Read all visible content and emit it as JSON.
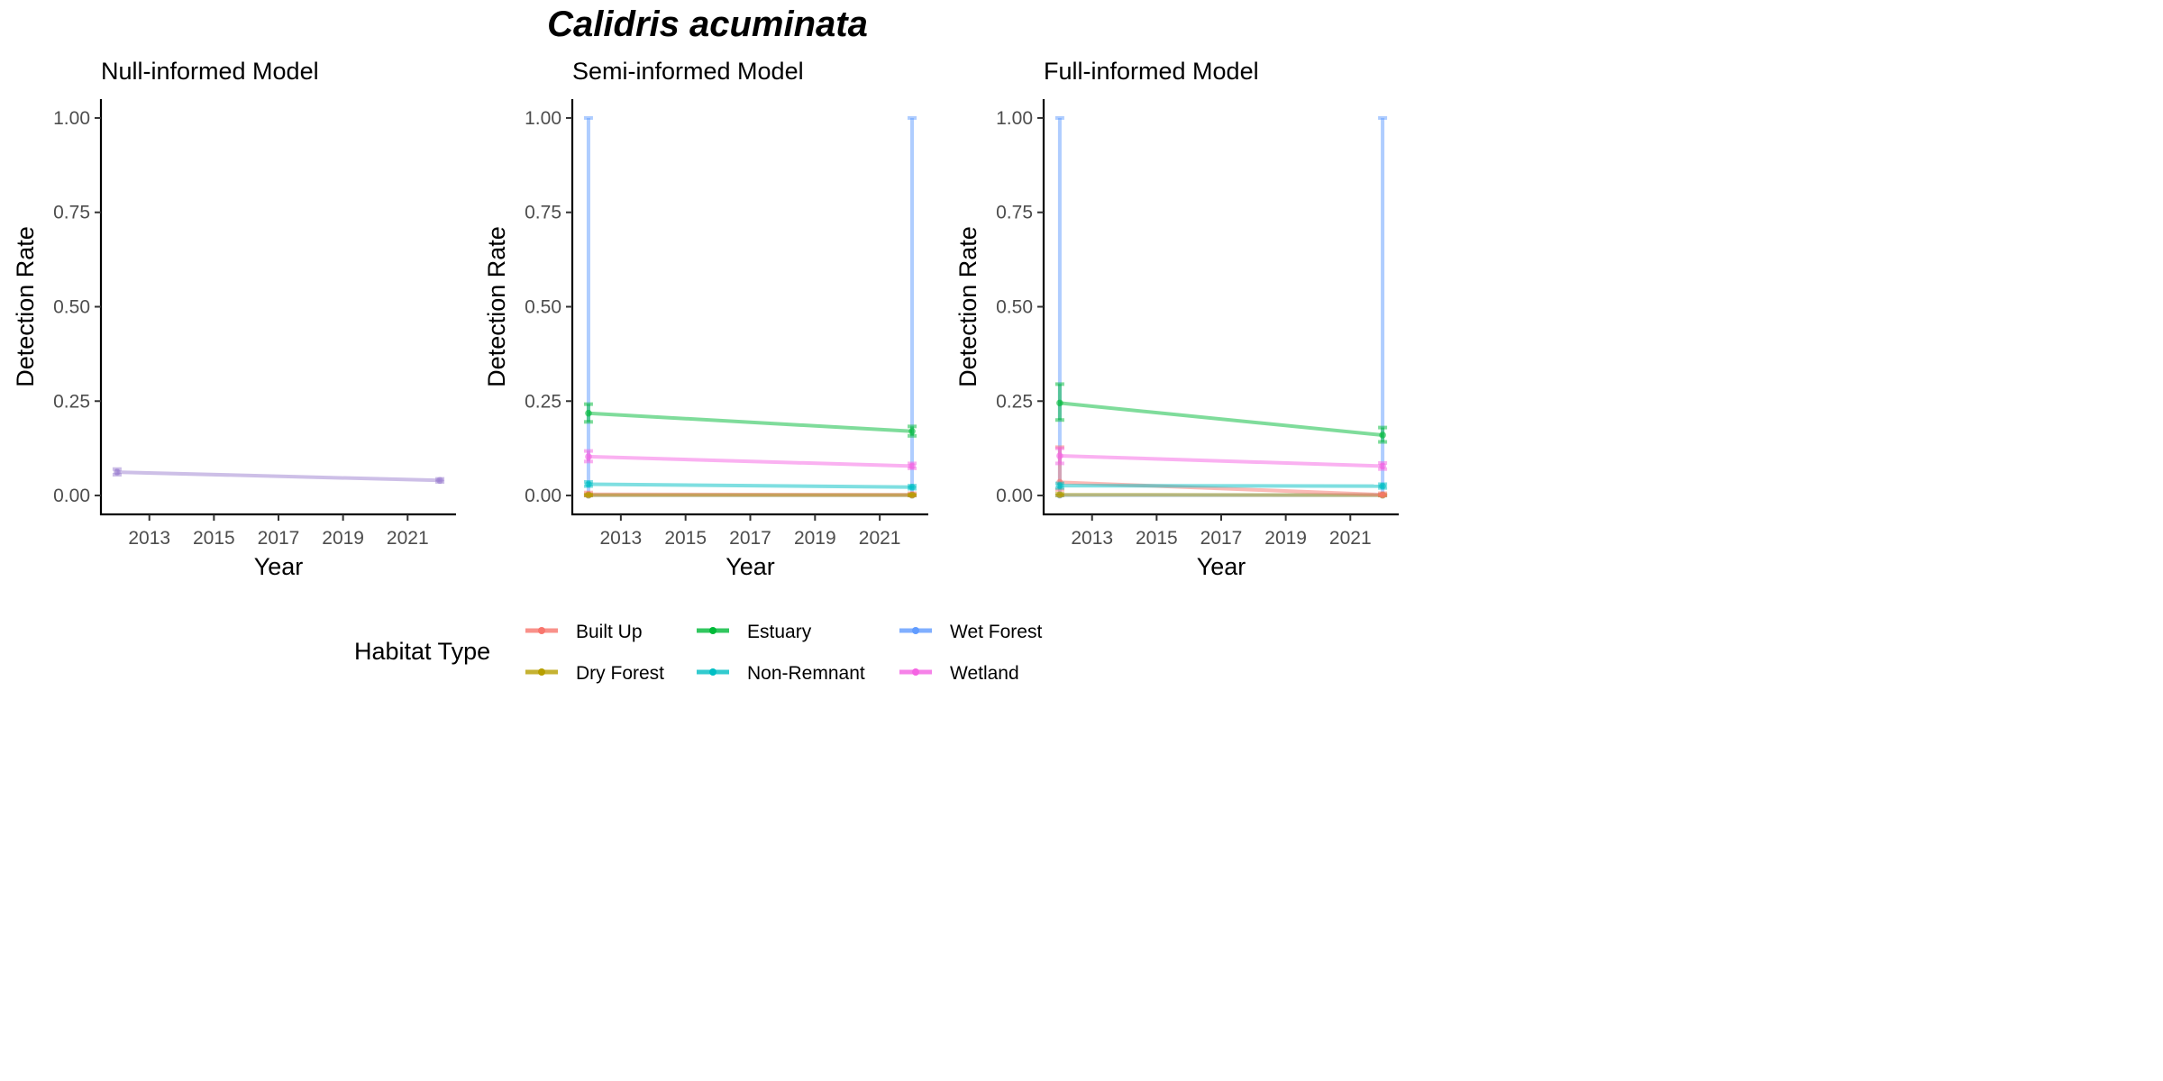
{
  "title": "Calidris acuminata",
  "colors": {
    "Built Up": "#F8766D",
    "Dry Forest": "#B79F00",
    "Estuary": "#00BA38",
    "Non-Remnant": "#00BFC4",
    "Wet Forest": "#619CFF",
    "Wetland": "#F564E3",
    "Null": "#9B7FD0"
  },
  "legend": {
    "title": "Habitat Type",
    "entries": [
      "Built Up",
      "Dry Forest",
      "Estuary",
      "Non-Remnant",
      "Wet Forest",
      "Wetland"
    ]
  },
  "chart_data": [
    {
      "type": "line",
      "title": "Null-informed Model",
      "xlabel": "Year",
      "ylabel": "Detection Rate",
      "xlim": [
        2011.5,
        2022.5
      ],
      "ylim": [
        -0.05,
        1.05
      ],
      "xticks": [
        2013,
        2015,
        2017,
        2019,
        2021
      ],
      "yticks": [
        0,
        0.25,
        0.5,
        0.75,
        1
      ],
      "ytick_labels": [
        "0.00",
        "0.25",
        "0.50",
        "0.75",
        "1.00"
      ],
      "series": [
        {
          "name": "Null",
          "x": [
            2012,
            2022
          ],
          "y": [
            0.062,
            0.04
          ],
          "lower": [
            0.055,
            0.036
          ],
          "upper": [
            0.07,
            0.044
          ]
        }
      ]
    },
    {
      "type": "line",
      "title": "Semi-informed Model",
      "xlabel": "Year",
      "ylabel": "Detection Rate",
      "xlim": [
        2011.5,
        2022.5
      ],
      "ylim": [
        -0.05,
        1.05
      ],
      "xticks": [
        2013,
        2015,
        2017,
        2019,
        2021
      ],
      "yticks": [
        0,
        0.25,
        0.5,
        0.75,
        1
      ],
      "ytick_labels": [
        "0.00",
        "0.25",
        "0.50",
        "0.75",
        "1.00"
      ],
      "series": [
        {
          "name": "Wet Forest",
          "x": [
            2012,
            2022
          ],
          "y": [
            0.001,
            0.001
          ],
          "lower": [
            0.0,
            0.0
          ],
          "upper": [
            1.0,
            1.0
          ]
        },
        {
          "name": "Built Up",
          "x": [
            2012,
            2022
          ],
          "y": [
            0.003,
            0.002
          ],
          "lower": [
            0.0,
            0.0
          ],
          "upper": [
            0.008,
            0.006
          ]
        },
        {
          "name": "Dry Forest",
          "x": [
            2012,
            2022
          ],
          "y": [
            0.001,
            0.001
          ],
          "lower": [
            0.0,
            0.0
          ],
          "upper": [
            0.003,
            0.003
          ]
        },
        {
          "name": "Non-Remnant",
          "x": [
            2012,
            2022
          ],
          "y": [
            0.03,
            0.022
          ],
          "lower": [
            0.025,
            0.018
          ],
          "upper": [
            0.036,
            0.026
          ]
        },
        {
          "name": "Wetland",
          "x": [
            2012,
            2022
          ],
          "y": [
            0.103,
            0.078
          ],
          "lower": [
            0.09,
            0.072
          ],
          "upper": [
            0.118,
            0.085
          ]
        },
        {
          "name": "Estuary",
          "x": [
            2012,
            2022
          ],
          "y": [
            0.218,
            0.17
          ],
          "lower": [
            0.195,
            0.158
          ],
          "upper": [
            0.242,
            0.183
          ]
        }
      ]
    },
    {
      "type": "line",
      "title": "Full-informed Model",
      "xlabel": "Year",
      "ylabel": "Detection Rate",
      "xlim": [
        2011.5,
        2022.5
      ],
      "ylim": [
        -0.05,
        1.05
      ],
      "xticks": [
        2013,
        2015,
        2017,
        2019,
        2021
      ],
      "yticks": [
        0,
        0.25,
        0.5,
        0.75,
        1
      ],
      "ytick_labels": [
        "0.00",
        "0.25",
        "0.50",
        "0.75",
        "1.00"
      ],
      "series": [
        {
          "name": "Wet Forest",
          "x": [
            2012,
            2022
          ],
          "y": [
            0.001,
            0.001
          ],
          "lower": [
            0.0,
            0.0
          ],
          "upper": [
            1.0,
            1.0
          ]
        },
        {
          "name": "Dry Forest",
          "x": [
            2012,
            2022
          ],
          "y": [
            0.002,
            0.001
          ],
          "lower": [
            0.0,
            0.0
          ],
          "upper": [
            0.005,
            0.003
          ]
        },
        {
          "name": "Built Up",
          "x": [
            2012,
            2022
          ],
          "y": [
            0.035,
            0.002
          ],
          "lower": [
            0.015,
            0.0
          ],
          "upper": [
            0.128,
            0.006
          ]
        },
        {
          "name": "Non-Remnant",
          "x": [
            2012,
            2022
          ],
          "y": [
            0.026,
            0.025
          ],
          "lower": [
            0.02,
            0.02
          ],
          "upper": [
            0.032,
            0.03
          ]
        },
        {
          "name": "Wetland",
          "x": [
            2012,
            2022
          ],
          "y": [
            0.105,
            0.078
          ],
          "lower": [
            0.085,
            0.07
          ],
          "upper": [
            0.125,
            0.086
          ]
        },
        {
          "name": "Estuary",
          "x": [
            2012,
            2022
          ],
          "y": [
            0.245,
            0.16
          ],
          "lower": [
            0.2,
            0.142
          ],
          "upper": [
            0.295,
            0.18
          ]
        }
      ]
    }
  ]
}
